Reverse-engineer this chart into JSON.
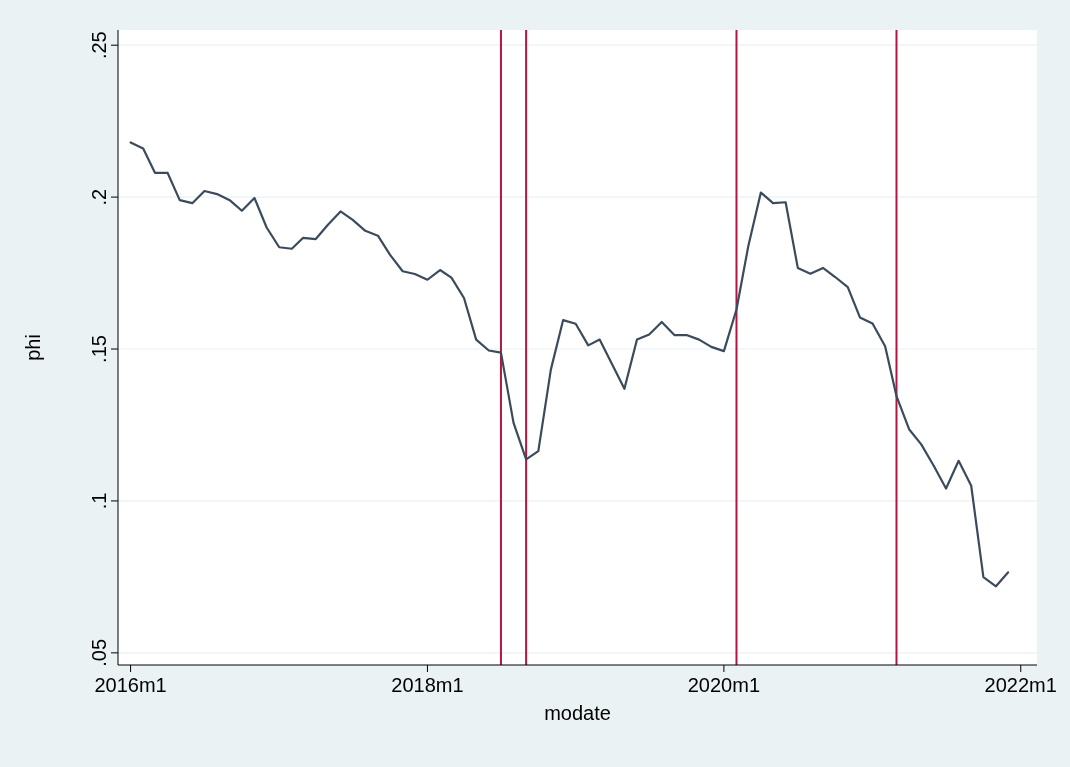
{
  "chart_data": {
    "type": "line",
    "xlabel": "modate",
    "ylabel": "phi",
    "x": [
      "2016-01",
      "2016-02",
      "2016-03",
      "2016-04",
      "2016-05",
      "2016-06",
      "2016-07",
      "2016-08",
      "2016-09",
      "2016-10",
      "2016-11",
      "2016-12",
      "2017-01",
      "2017-02",
      "2017-03",
      "2017-04",
      "2017-05",
      "2017-06",
      "2017-07",
      "2017-08",
      "2017-09",
      "2017-10",
      "2017-11",
      "2017-12",
      "2018-01",
      "2018-02",
      "2018-03",
      "2018-04",
      "2018-05",
      "2018-06",
      "2018-07",
      "2018-08",
      "2018-09",
      "2018-10",
      "2018-11",
      "2018-12",
      "2019-01",
      "2019-02",
      "2019-03",
      "2019-04",
      "2019-05",
      "2019-06",
      "2019-07",
      "2019-08",
      "2019-09",
      "2019-10",
      "2019-11",
      "2019-12",
      "2020-01",
      "2020-02",
      "2020-03",
      "2020-04",
      "2020-05",
      "2020-06",
      "2020-07",
      "2020-08",
      "2020-09",
      "2020-10",
      "2020-11",
      "2020-12",
      "2021-01",
      "2021-02",
      "2021-03",
      "2021-04",
      "2021-05",
      "2021-06",
      "2021-07",
      "2021-08",
      "2021-09",
      "2021-10",
      "2021-11",
      "2021-12"
    ],
    "series": [
      {
        "color": "#3b4b5c",
        "values": [
          0.218,
          0.216,
          0.208,
          0.208,
          0.199,
          0.198,
          0.202,
          0.201,
          0.199,
          0.1955,
          0.1997,
          0.19,
          0.1835,
          0.183,
          0.1866,
          0.1862,
          0.1909,
          0.1953,
          0.1925,
          0.1889,
          0.1873,
          0.181,
          0.1756,
          0.1747,
          0.1728,
          0.176,
          0.1735,
          0.1668,
          0.1531,
          0.1495,
          0.1488,
          0.1257,
          0.1137,
          0.1164,
          0.1433,
          0.1595,
          0.1583,
          0.1512,
          0.1531,
          0.1449,
          0.1369,
          0.1531,
          0.1548,
          0.1589,
          0.1546,
          0.1546,
          0.1531,
          0.1507,
          0.1493,
          0.163,
          0.1838,
          0.2015,
          0.198,
          0.1983,
          0.1767,
          0.1748,
          0.1767,
          0.1737,
          0.1704,
          0.1604,
          0.1584,
          0.1509,
          0.1345,
          0.1236,
          0.1186,
          0.1115,
          0.1041,
          0.1132,
          0.105,
          0.0749,
          0.0719,
          0.0765
        ]
      }
    ],
    "xlim": [
      "2015-12-01",
      "2022-02-10"
    ],
    "xticks": [
      {
        "value": "2016-01",
        "label": "2016m1"
      },
      {
        "value": "2018-01",
        "label": "2018m1"
      },
      {
        "value": "2020-01",
        "label": "2020m1"
      },
      {
        "value": "2022-01",
        "label": "2022m1"
      }
    ],
    "ylim": [
      0.046,
      0.255
    ],
    "yticks": [
      {
        "value": 0.05,
        "label": ".05"
      },
      {
        "value": 0.1,
        "label": ".1"
      },
      {
        "value": 0.15,
        "label": ".15"
      },
      {
        "value": 0.2,
        "label": ".2"
      },
      {
        "value": 0.25,
        "label": ".25"
      }
    ],
    "grid": "y",
    "line_style": "solid",
    "ref_lines": [
      {
        "axis": "x",
        "value": "2018-07",
        "color": "#b0163f"
      },
      {
        "axis": "x",
        "value": "2018-09",
        "color": "#b0163f"
      },
      {
        "axis": "x",
        "value": "2020-02",
        "color": "#b0163f"
      },
      {
        "axis": "x",
        "value": "2021-03",
        "color": "#b0163f"
      }
    ]
  }
}
